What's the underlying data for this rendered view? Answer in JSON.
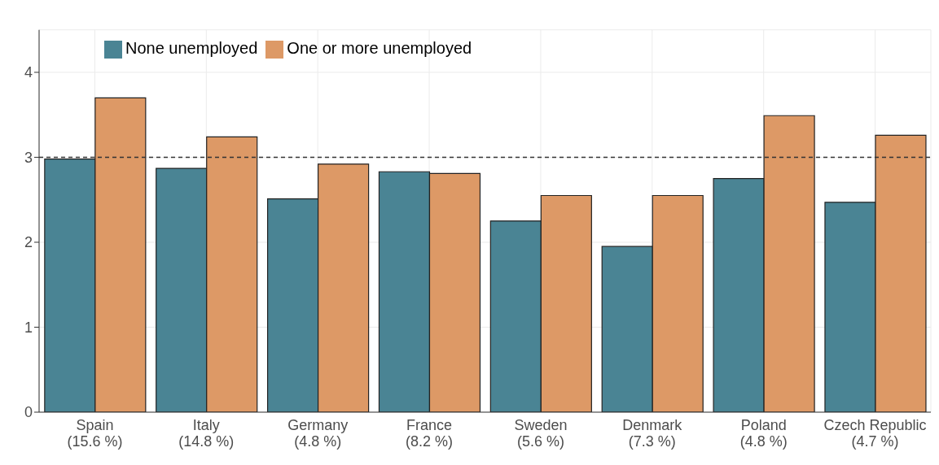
{
  "chart_data": {
    "type": "bar",
    "categories": [
      "Spain\n(15.6 %)",
      "Italy\n(14.8 %)",
      "Germany\n(4.8 %)",
      "France\n(8.2 %)",
      "Sweden\n(5.6 %)",
      "Denmark\n(7.3 %)",
      "Poland\n(4.8 %)",
      "Czech Republic\n(4.7 %)"
    ],
    "series": [
      {
        "name": "None unemployed",
        "color": "#4a8494",
        "values": [
          2.98,
          2.87,
          2.51,
          2.83,
          2.25,
          1.95,
          2.75,
          2.47
        ]
      },
      {
        "name": "One or more unemployed",
        "color": "#dd9966",
        "values": [
          3.7,
          3.24,
          2.92,
          2.81,
          2.55,
          2.55,
          3.49,
          3.26
        ]
      }
    ],
    "ylim": [
      0,
      4.5
    ],
    "yticks": [
      0,
      1,
      2,
      3,
      4
    ],
    "grid": true,
    "legend": "top left",
    "ref_lines": [
      {
        "axis": "y",
        "value": 3,
        "line_style": "dashed",
        "color": "#333333"
      }
    ]
  }
}
